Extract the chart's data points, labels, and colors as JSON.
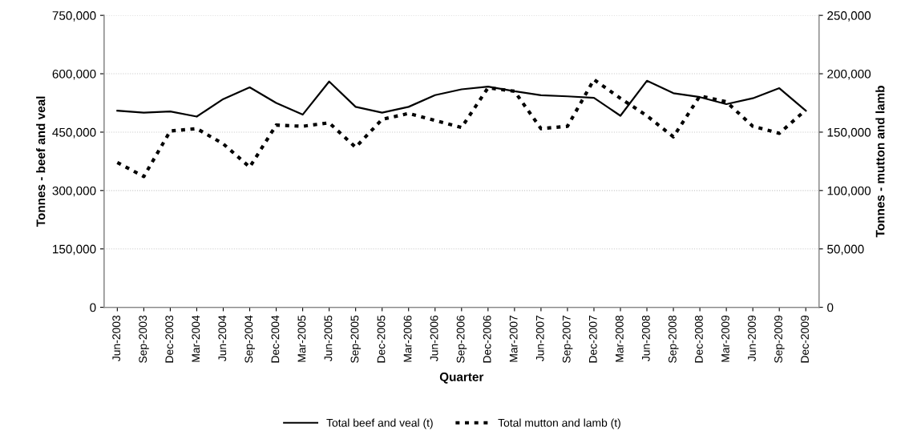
{
  "chart_data": {
    "type": "line",
    "xlabel": "Quarter",
    "ylabel": "Tonnes - beef and veal",
    "y2label": "Tonnes - mutton and lamb",
    "categories": [
      "Jun-2003",
      "Sep-2003",
      "Dec-2003",
      "Mar-2004",
      "Jun-2004",
      "Sep-2004",
      "Dec-2004",
      "Mar-2005",
      "Jun-2005",
      "Sep-2005",
      "Dec-2005",
      "Mar-2006",
      "Jun-2006",
      "Sep-2006",
      "Dec-2006",
      "Mar-2007",
      "Jun-2007",
      "Sep-2007",
      "Dec-2007",
      "Mar-2008",
      "Jun-2008",
      "Sep-2008",
      "Dec-2008",
      "Mar-2009",
      "Jun-2009",
      "Sep-2009",
      "Dec-2009"
    ],
    "series": [
      {
        "name": "Total beef and veal (t)",
        "color": "#000000",
        "line_style": "solid",
        "values": [
          505000,
          500000,
          503000,
          490000,
          535000,
          565000,
          525000,
          495000,
          580000,
          515000,
          500000,
          515000,
          545000,
          560000,
          567000,
          555000,
          545000,
          542000,
          538000,
          492000,
          582000,
          550000,
          540000,
          522000,
          537000,
          563000,
          505000
        ]
      },
      {
        "name": "Total mutton and lamb (t)",
        "color": "#000000",
        "line_style": "dotted",
        "axis": "y2",
        "values": [
          124000,
          112000,
          151000,
          153000,
          140000,
          120000,
          156000,
          155000,
          158000,
          137000,
          161000,
          166000,
          160000,
          154000,
          188000,
          185000,
          153000,
          155000,
          195000,
          179000,
          164000,
          146000,
          181000,
          176000,
          155000,
          149000,
          169000
        ]
      }
    ],
    "ylim": [
      0,
      750000
    ],
    "yticks": [
      {
        "value": 0,
        "label": "0"
      },
      {
        "value": 150000,
        "label": "150,000"
      },
      {
        "value": 300000,
        "label": "300,000"
      },
      {
        "value": 450000,
        "label": "450,000"
      },
      {
        "value": 600000,
        "label": "600,000"
      },
      {
        "value": 750000,
        "label": "750,000"
      }
    ],
    "y2lim": [
      0,
      250000
    ],
    "y2ticks": [
      {
        "value": 0,
        "label": "0"
      },
      {
        "value": 50000,
        "label": "50,000"
      },
      {
        "value": 100000,
        "label": "100,000"
      },
      {
        "value": 150000,
        "label": "150,000"
      },
      {
        "value": 200000,
        "label": "200,000"
      },
      {
        "value": 250000,
        "label": "250,000"
      }
    ],
    "grid": "y",
    "legend": "bottom",
    "marker": "none"
  }
}
